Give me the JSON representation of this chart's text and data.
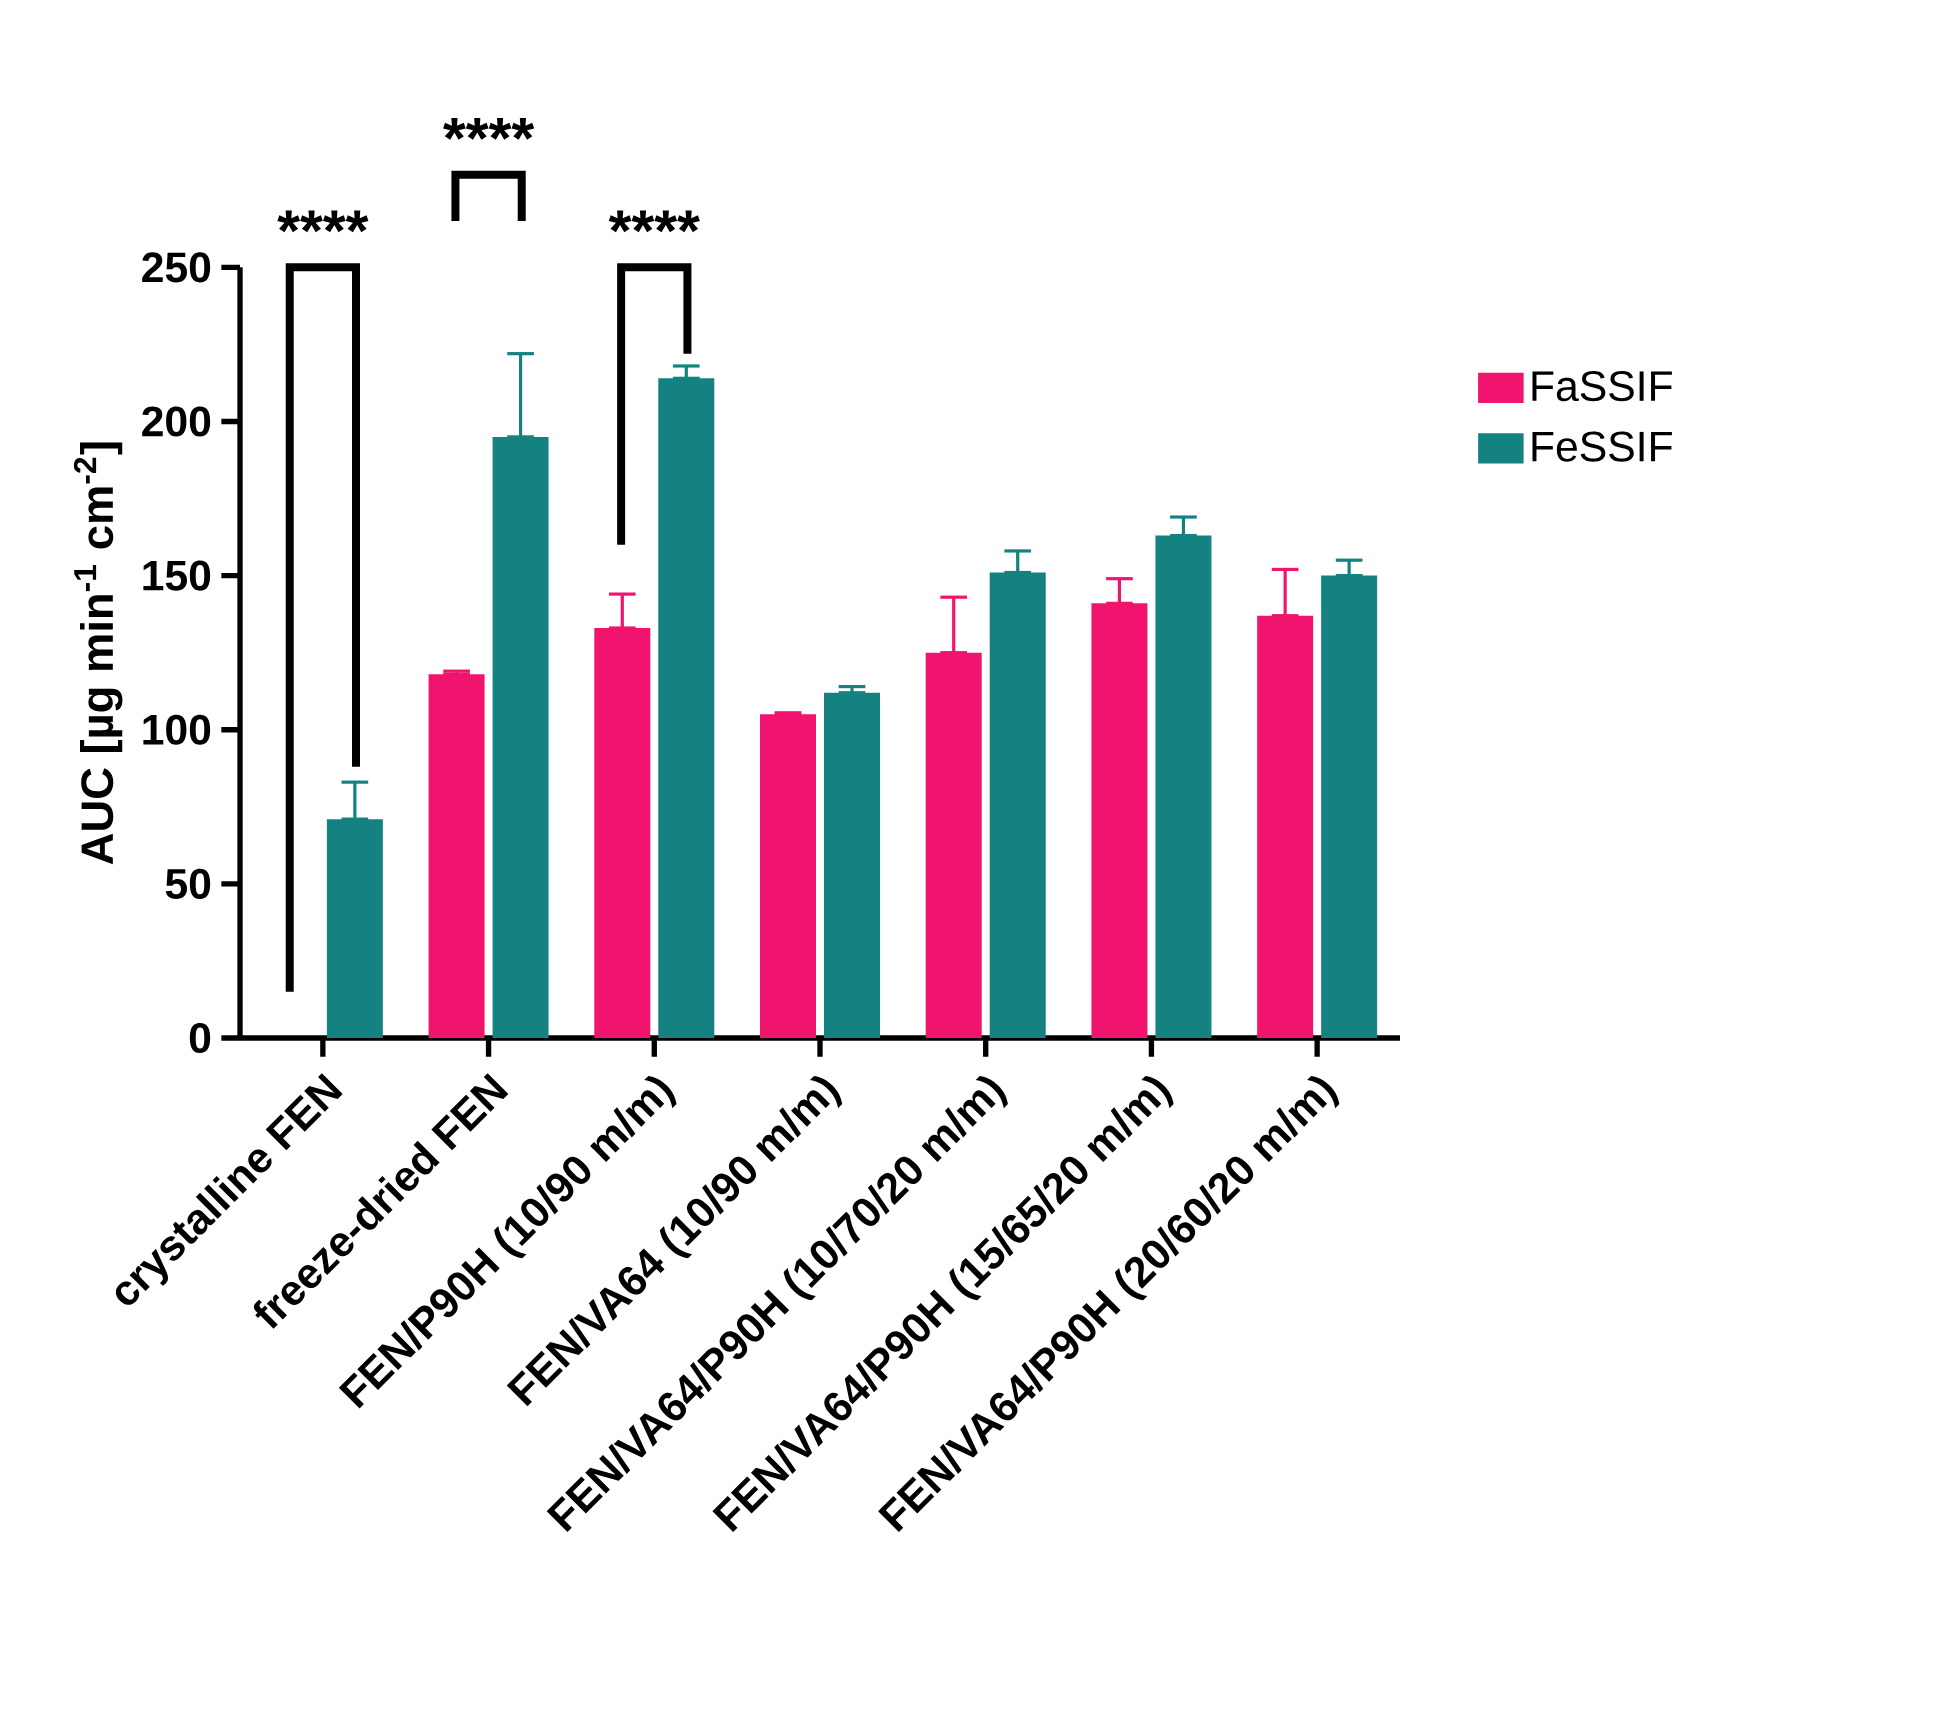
{
  "chart_data": {
    "type": "bar",
    "ylabel": "AUC [µg min$^{-1}$ cm$^{-2}$]",
    "categories": [
      "crystalline FEN",
      "freeze-dried FEN",
      "FEN/P90H (10/90 m/m)",
      "FEN/VA64 (10/90 m/m)",
      "FEN/VA64/P90H (10/70/20 m/m)",
      "FEN/VA64/P90H (15/65/20 m/m)",
      "FEN/VA64/P90H (20/60/20 m/m)"
    ],
    "series": [
      {
        "name": "FaSSIF",
        "color": "#f0146e",
        "values": [
          null,
          118,
          133,
          105,
          125,
          141,
          137
        ],
        "errors": [
          null,
          [
            118,
            119
          ],
          [
            133,
            144
          ],
          [
            105,
            105.5
          ],
          [
            125,
            143
          ],
          [
            141,
            149
          ],
          [
            137,
            152
          ]
        ]
      },
      {
        "name": "FeSSIF",
        "color": "#138280",
        "values": [
          71,
          195,
          214,
          112,
          151,
          163,
          150
        ],
        "errors": [
          [
            71,
            83
          ],
          [
            195,
            222
          ],
          [
            214,
            218
          ],
          [
            112,
            114
          ],
          [
            151,
            158
          ],
          [
            163,
            169
          ],
          [
            150,
            155
          ]
        ]
      }
    ],
    "ylim": [
      0,
      250
    ],
    "yticks": [
      0,
      50,
      100,
      150,
      200,
      250
    ],
    "grid": false,
    "legend": "right",
    "annotations": [
      "****",
      "****",
      "****"
    ]
  }
}
